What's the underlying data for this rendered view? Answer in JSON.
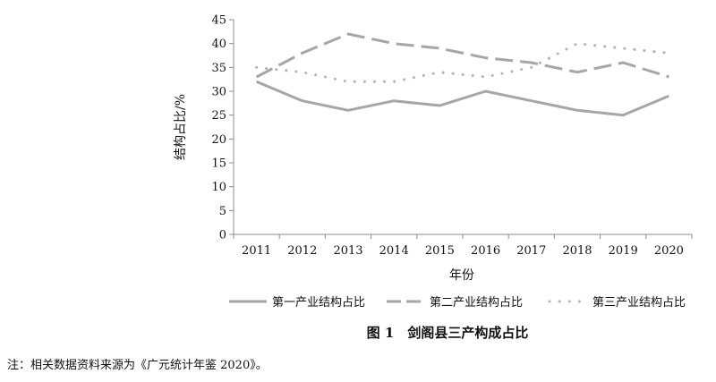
{
  "chart_data": {
    "type": "line",
    "title": "图 1　剑阁县三产构成占比",
    "xlabel": "年份",
    "ylabel": "结构占比/%",
    "ylim": [
      0,
      45
    ],
    "ytick_step": 5,
    "x": [
      "2011",
      "2012",
      "2013",
      "2014",
      "2015",
      "2016",
      "2017",
      "2018",
      "2019",
      "2020"
    ],
    "legend_position": "bottom",
    "grid": false,
    "series": [
      {
        "name": "第一产业结构占比",
        "style": "solid",
        "color": "#a6a6a6",
        "values": [
          32,
          28,
          26,
          28,
          27,
          30,
          28,
          26,
          25,
          29
        ]
      },
      {
        "name": "第二产业结构占比",
        "style": "dashed",
        "color": "#a6a6a6",
        "values": [
          33,
          38,
          42,
          40,
          39,
          37,
          36,
          34,
          36,
          33
        ]
      },
      {
        "name": "第三产业结构占比",
        "style": "dotted",
        "color": "#b3b3b3",
        "values": [
          35,
          34,
          32,
          32,
          34,
          33,
          35,
          40,
          39,
          38
        ]
      }
    ]
  },
  "note": "注：相关数据资料来源为《广元统计年鉴 2020》。"
}
